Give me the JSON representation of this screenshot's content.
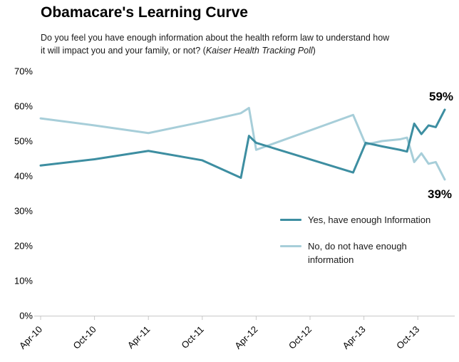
{
  "header": {
    "title": "Obamacare's Learning Curve",
    "subtitle_prefix": "Do you feel you have enough information about the health reform law to understand how it will impact you and your family, or not? (",
    "subtitle_italic": "Kaiser Health Tracking Poll",
    "subtitle_suffix": ")"
  },
  "chart_data": {
    "type": "line",
    "title": "Obamacare's Learning Curve",
    "source_note": "Kaiser Health Tracking Poll",
    "x_unit": "months since Apr-2010",
    "x": [
      0,
      6,
      12,
      18,
      22.3,
      23.2,
      24,
      34.8,
      36.2,
      38,
      40,
      40.8,
      41.6,
      42.4,
      43.2,
      44,
      45
    ],
    "series": [
      {
        "name": "Yes, have enough Information",
        "color": "#3d8ea1",
        "values": [
          43,
          44.8,
          47.2,
          44.5,
          39.5,
          51.5,
          49.5,
          41,
          49.5,
          48.5,
          47.5,
          47,
          55,
          52,
          54.5,
          54,
          59
        ],
        "end_label": "59%"
      },
      {
        "name": "No, do not have enough information",
        "color": "#a7ced9",
        "values": [
          56.5,
          54.5,
          52.3,
          55.5,
          58,
          59.5,
          47.5,
          57.5,
          49,
          50,
          50.5,
          51,
          44,
          46.5,
          43.5,
          44,
          39
        ],
        "end_label": "39%"
      }
    ],
    "x_tick_months": [
      0,
      6,
      12,
      18,
      24,
      30,
      36,
      42
    ],
    "x_tick_labels": [
      "Apr-10",
      "Oct-10",
      "Apr-11",
      "Oct-11",
      "Apr-12",
      "Oct-12",
      "Apr-13",
      "Oct-13"
    ],
    "y_ticks": [
      "0%",
      "10%",
      "20%",
      "30%",
      "40%",
      "50%",
      "60%",
      "70%"
    ],
    "ylim": [
      0,
      70
    ],
    "grid": false,
    "legend_position": "inside-right-middle",
    "axis_color": "#c8c8c8"
  }
}
